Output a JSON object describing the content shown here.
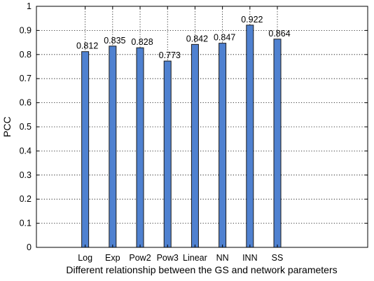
{
  "chart_data": {
    "type": "bar",
    "categories": [
      "Log",
      "Exp",
      "Pow2",
      "Pow3",
      "Linear",
      "NN",
      "INN",
      "SS"
    ],
    "values": [
      0.812,
      0.835,
      0.828,
      0.773,
      0.842,
      0.847,
      0.922,
      0.864
    ],
    "data_labels": [
      "0.812",
      "0.835",
      "0.828",
      "0.773",
      "0.842",
      "0.847",
      "0.922",
      "0.864"
    ],
    "xlabel": "Different relationship between the GS and network parameters",
    "ylabel": "PCC",
    "ylim": [
      0,
      1
    ],
    "yticks": [
      0,
      0.1,
      0.2,
      0.3,
      0.4,
      0.5,
      0.6,
      0.7,
      0.8,
      0.9,
      1
    ],
    "ytick_labels": [
      "0",
      "0.1",
      "0.2",
      "0.3",
      "0.4",
      "0.5",
      "0.6",
      "0.7",
      "0.8",
      "0.9",
      "1"
    ],
    "grid": true,
    "bar_color": "#4f81d0"
  }
}
